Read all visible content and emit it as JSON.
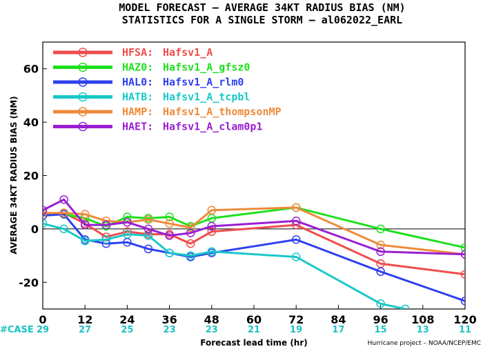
{
  "header": {
    "title_line1": "MODEL FORECAST – AVERAGE 34KT RADIUS BIAS (NM)",
    "title_line2": "STATISTICS FOR A SINGLE STORM – al062022_EARL"
  },
  "footer": {
    "case_label": "#CASE",
    "credit": "Hurricane project – NOAA/NCEP/EMC"
  },
  "chart_data": {
    "type": "line",
    "title": "MODEL FORECAST – AVERAGE 34KT RADIUS BIAS (NM)",
    "subtitle": "STATISTICS FOR A SINGLE STORM – al062022_EARL",
    "xlabel": "Forecast lead time (hr)",
    "ylabel": "AVERAGE 34KT RADIUS BIAS (NM)",
    "xlim": [
      0,
      120
    ],
    "ylim": [
      -30,
      70
    ],
    "x_ticks": [
      0,
      12,
      24,
      36,
      48,
      60,
      72,
      84,
      96,
      108,
      120
    ],
    "y_ticks": [
      -20,
      0,
      20,
      40,
      60
    ],
    "grid": false,
    "zero_line": true,
    "legend_position": "top-left",
    "case_counts": [
      {
        "x": 0,
        "n": "29"
      },
      {
        "x": 12,
        "n": "27"
      },
      {
        "x": 24,
        "n": "25"
      },
      {
        "x": 36,
        "n": "23"
      },
      {
        "x": 48,
        "n": "23"
      },
      {
        "x": 60,
        "n": "21"
      },
      {
        "x": 72,
        "n": "19"
      },
      {
        "x": 84,
        "n": "17"
      },
      {
        "x": 96,
        "n": "15"
      },
      {
        "x": 108,
        "n": "13"
      },
      {
        "x": 120,
        "n": "11"
      }
    ],
    "series": [
      {
        "name": "HFSA:",
        "desc": "Hafsv1_A",
        "color": "#f04c4c",
        "x": [
          0,
          6,
          12,
          18,
          24,
          30,
          36,
          42,
          48,
          72,
          96,
          120
        ],
        "y": [
          5,
          6,
          2,
          -3,
          -1,
          -2,
          -2,
          -5.5,
          -1,
          1.5,
          -13,
          -17
        ]
      },
      {
        "name": "HAZ0:",
        "desc": "Hafsv1_A_gfsz0",
        "color": "#1ee01e",
        "x": [
          0,
          6,
          12,
          18,
          24,
          30,
          36,
          42,
          48,
          72,
          96,
          120
        ],
        "y": [
          6,
          5.5,
          4,
          1,
          4.5,
          4,
          4.5,
          1,
          4,
          8,
          0,
          -7
        ]
      },
      {
        "name": "HAL0:",
        "desc": "Hafsv1_A_rlm0",
        "color": "#2f40ee",
        "x": [
          0,
          6,
          12,
          18,
          24,
          30,
          36,
          42,
          48,
          72,
          96,
          120
        ],
        "y": [
          5,
          5.5,
          -4,
          -5.5,
          -5,
          -7.5,
          -9,
          -10.5,
          -9,
          -4,
          -16,
          -27
        ]
      },
      {
        "name": "HATB:",
        "desc": "Hafsv1_A_tcpbl",
        "color": "#19c8c8",
        "x": [
          0,
          6,
          12,
          18,
          24,
          30,
          36,
          42,
          48,
          72,
          96,
          103
        ],
        "y": [
          2,
          0,
          -4.5,
          -4,
          -2,
          -2.5,
          -9,
          -10,
          -8.5,
          -10.5,
          -28,
          -30
        ]
      },
      {
        "name": "HAMP:",
        "desc": "Hafsv1_A_thompsonMP",
        "color": "#ee8a3a",
        "x": [
          0,
          6,
          12,
          18,
          24,
          30,
          36,
          42,
          48,
          72,
          96,
          120
        ],
        "y": [
          6,
          6,
          5.5,
          3,
          2.5,
          3.5,
          2,
          0.5,
          7,
          8,
          -6,
          -9.5
        ]
      },
      {
        "name": "HAET:",
        "desc": "Hafsv1_A_clam0p1",
        "color": "#9a1ed2",
        "x": [
          0,
          6,
          12,
          18,
          24,
          30,
          36,
          42,
          48,
          72,
          96,
          120
        ],
        "y": [
          7,
          11,
          1.5,
          1.5,
          2.5,
          0,
          -2.5,
          -1.5,
          1,
          3,
          -8.5,
          -9.5
        ]
      }
    ]
  }
}
